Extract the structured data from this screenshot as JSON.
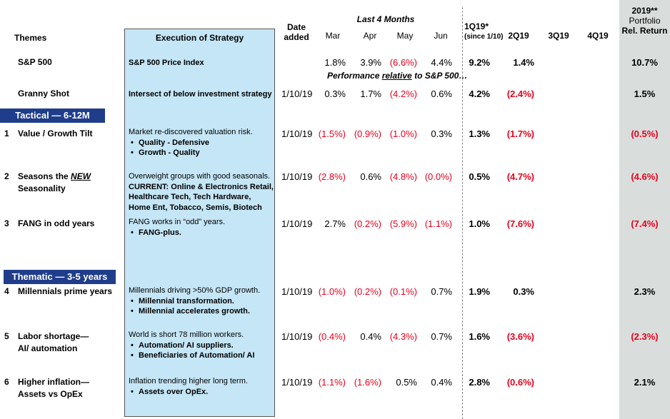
{
  "header": {
    "themes": "Themes",
    "execution": "Execution of Strategy",
    "date_added": [
      "Date",
      "added"
    ],
    "last4": "Last 4 Months",
    "months": [
      "Mar",
      "Apr",
      "May",
      "Jun"
    ],
    "q1": [
      "1Q19*",
      "(since 1/10)"
    ],
    "q2": "2Q19",
    "q3": "3Q19",
    "q4": "4Q19",
    "ret": [
      "2019**",
      "Portfolio",
      "Rel. Return"
    ]
  },
  "relative_note": "Performance relative to S&P 500…",
  "sections": {
    "tactical": "Tactical — 6-12M",
    "thematic": "Thematic  — 3-5 years"
  },
  "rows": [
    {
      "num": "",
      "theme": [
        "S&P 500"
      ],
      "exec_text": "S&P 500 Price Index",
      "bullets": [],
      "date": "",
      "months": [
        "1.8%",
        "3.9%",
        "(6.6%)",
        "4.4%"
      ],
      "q1": "9.2%",
      "q2": "1.4%",
      "ret": "10.7%"
    },
    {
      "num": "",
      "theme": [
        "Granny Shot"
      ],
      "exec_text": "Intersect of below investment strategy",
      "bullets": [],
      "date": "1/10/19",
      "months": [
        "0.3%",
        "1.7%",
        "(4.2%)",
        "0.6%"
      ],
      "q1": "4.2%",
      "q2": "(2.4%)",
      "ret": "1.5%"
    },
    {
      "num": "1",
      "theme": [
        "Value / Growth Tilt"
      ],
      "exec_text": "Market re-discovered valuation risk.",
      "bullets": [
        "Quality - Defensive",
        "Growth - Quality"
      ],
      "date": "1/10/19",
      "months": [
        "(1.5%)",
        "(0.9%)",
        "(1.0%)",
        "0.3%"
      ],
      "q1": "1.3%",
      "q2": "(1.7%)",
      "ret": "(0.5%)"
    },
    {
      "num": "2",
      "theme": [
        "Seasons the ",
        "NEW",
        "Seasonality"
      ],
      "exec_text": "Overweight groups with good seasonals.",
      "exec_bold": [
        "CURRENT: Online & Electronics Retail,",
        "Healthcare Tech, Tech Hardware,",
        "Home Ent, Tobacco, Semis, Biotech"
      ],
      "bullets": [],
      "date": "1/10/19",
      "months": [
        "(2.8%)",
        "0.6%",
        "(4.8%)",
        "(0.0%)"
      ],
      "q1": "0.5%",
      "q2": "(4.7%)",
      "ret": "(4.6%)"
    },
    {
      "num": "3",
      "theme": [
        "FANG in odd years"
      ],
      "exec_text": "FANG works in “odd” years.",
      "bullets": [
        "FANG-plus."
      ],
      "date": "1/10/19",
      "months": [
        "2.7%",
        "(0.2%)",
        "(5.9%)",
        "(1.1%)"
      ],
      "q1": "1.0%",
      "q2": "(7.6%)",
      "ret": "(7.4%)"
    },
    {
      "num": "4",
      "theme": [
        "Millennials prime years"
      ],
      "exec_text": "Millennials driving >50% GDP growth.",
      "bullets": [
        "Millennial transformation.",
        "Millennial accelerates growth."
      ],
      "date": "1/10/19",
      "months": [
        "(1.0%)",
        "(0.2%)",
        "(0.1%)",
        "0.7%"
      ],
      "q1": "1.9%",
      "q2": "0.3%",
      "ret": "2.3%"
    },
    {
      "num": "5",
      "theme": [
        "Labor shortage—",
        "AI/ automation"
      ],
      "exec_text": "World is short 78 million workers.",
      "bullets": [
        "Automation/ AI suppliers.",
        "Beneficiaries of Automation/ AI"
      ],
      "date": "1/10/19",
      "months": [
        "(0.4%)",
        "0.4%",
        "(4.3%)",
        "0.7%"
      ],
      "q1": "1.6%",
      "q2": "(3.6%)",
      "ret": "(2.3%)"
    },
    {
      "num": "6",
      "theme": [
        "Higher inflation—",
        "Assets vs OpEx"
      ],
      "exec_text": "Inflation trending higher long term.",
      "bullets": [
        "Assets over OpEx."
      ],
      "date": "1/10/19",
      "months": [
        "(1.1%)",
        "(1.6%)",
        "0.5%",
        "0.4%"
      ],
      "q1": "2.8%",
      "q2": "(0.6%)",
      "ret": "2.1%"
    }
  ],
  "colors": {
    "negative": "#e8001c",
    "section_bg": "#1f3d8a",
    "exec_bg": "#c5e6f6",
    "return_bg": "#d9dedd"
  }
}
